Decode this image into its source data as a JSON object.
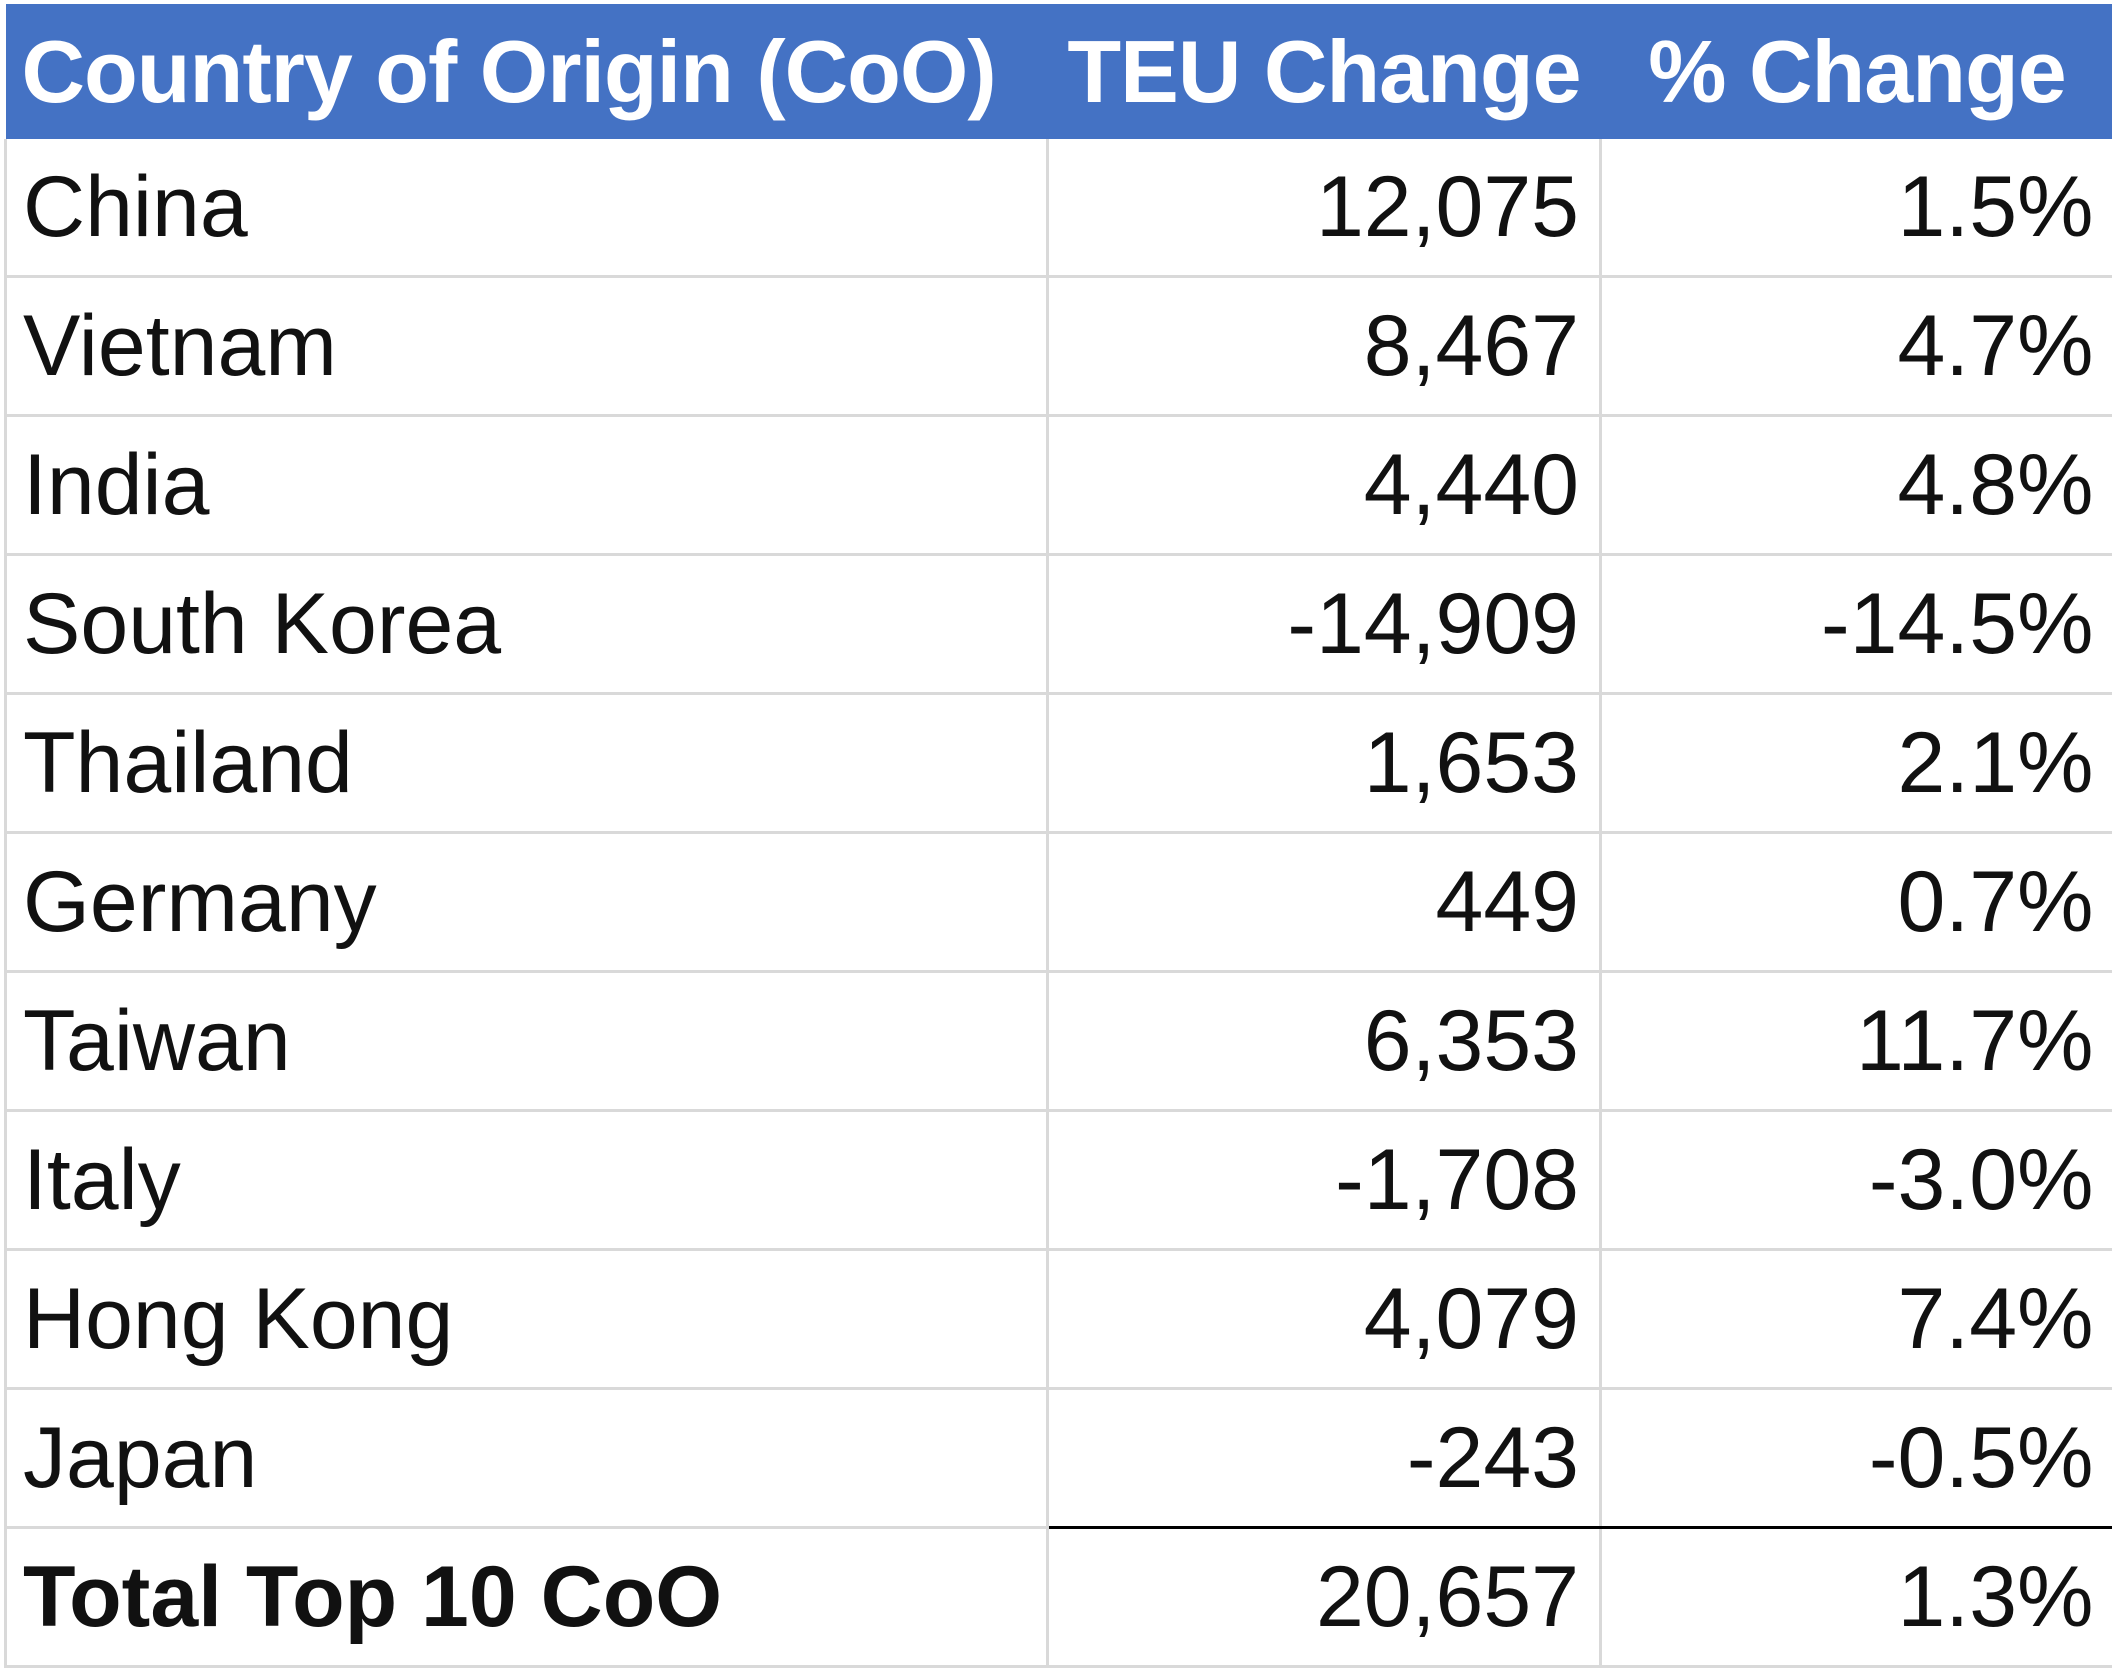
{
  "table": {
    "headers": {
      "country": "Country of Origin (CoO)",
      "teu_change": "TEU Change",
      "pct_change": "% Change"
    },
    "rows": [
      {
        "country": "China",
        "teu_change": "12,075",
        "pct_change": "1.5%"
      },
      {
        "country": "Vietnam",
        "teu_change": "8,467",
        "pct_change": "4.7%"
      },
      {
        "country": "India",
        "teu_change": "4,440",
        "pct_change": "4.8%"
      },
      {
        "country": "South Korea",
        "teu_change": "-14,909",
        "pct_change": "-14.5%"
      },
      {
        "country": "Thailand",
        "teu_change": "1,653",
        "pct_change": "2.1%"
      },
      {
        "country": "Germany",
        "teu_change": "449",
        "pct_change": "0.7%"
      },
      {
        "country": "Taiwan",
        "teu_change": "6,353",
        "pct_change": "11.7%"
      },
      {
        "country": "Italy",
        "teu_change": "-1,708",
        "pct_change": "-3.0%"
      },
      {
        "country": "Hong Kong",
        "teu_change": "4,079",
        "pct_change": "7.4%"
      },
      {
        "country": "Japan",
        "teu_change": "-243",
        "pct_change": "-0.5%"
      }
    ],
    "total": {
      "country": "Total Top 10 CoO",
      "teu_change": "20,657",
      "pct_change": "1.3%"
    }
  },
  "colors": {
    "header_bg": "#4472c4",
    "header_text": "#ffffff",
    "gridline": "#d9d9d9",
    "total_rule": "#000000"
  }
}
